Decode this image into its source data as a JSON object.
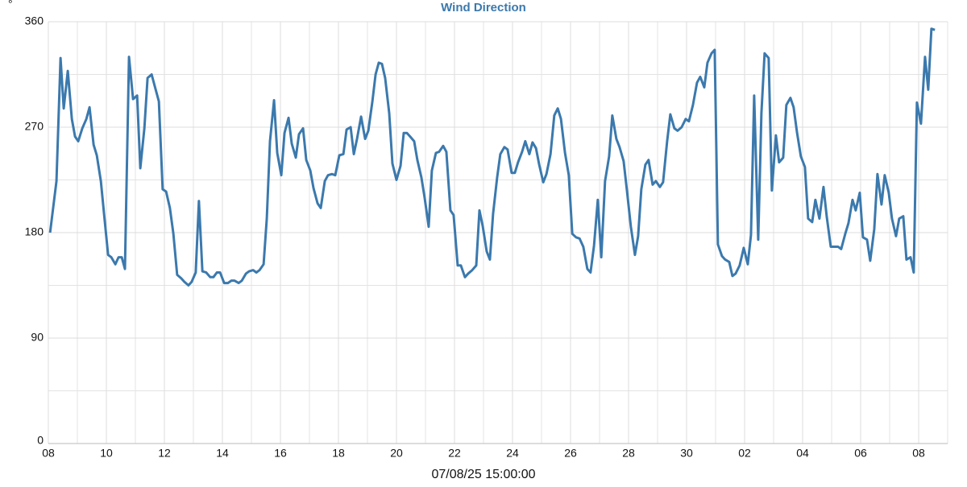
{
  "chart_data": {
    "type": "line",
    "title": "Wind Direction",
    "y_unit": "°",
    "x_label": "07/08/25 15:00:00",
    "xlim": [
      0,
      31
    ],
    "ylim": [
      0,
      360
    ],
    "xticks": [
      {
        "value": 0,
        "label": "08"
      },
      {
        "value": 2,
        "label": "10"
      },
      {
        "value": 4,
        "label": "12"
      },
      {
        "value": 6,
        "label": "14"
      },
      {
        "value": 8,
        "label": "16"
      },
      {
        "value": 10,
        "label": "18"
      },
      {
        "value": 12,
        "label": "20"
      },
      {
        "value": 14,
        "label": "22"
      },
      {
        "value": 16,
        "label": "24"
      },
      {
        "value": 18,
        "label": "26"
      },
      {
        "value": 20,
        "label": "28"
      },
      {
        "value": 22,
        "label": "30"
      },
      {
        "value": 24,
        "label": "02"
      },
      {
        "value": 26,
        "label": "04"
      },
      {
        "value": 28,
        "label": "06"
      },
      {
        "value": 30,
        "label": "08"
      }
    ],
    "yticks": [
      0,
      90,
      180,
      270,
      360
    ],
    "x_grid_step": 1,
    "y_grid_step": 45,
    "grid": true,
    "series": [
      {
        "name": "Wind Direction",
        "color": "#3b79ad",
        "x": [
          0.06,
          0.28,
          0.42,
          0.53,
          0.67,
          0.81,
          0.92,
          1.03,
          1.17,
          1.31,
          1.42,
          1.56,
          1.67,
          1.81,
          1.92,
          2.06,
          2.17,
          2.31,
          2.42,
          2.53,
          2.64,
          2.78,
          2.92,
          3.06,
          3.17,
          3.31,
          3.42,
          3.56,
          3.69,
          3.81,
          3.94,
          4.06,
          4.19,
          4.31,
          4.44,
          4.58,
          4.69,
          4.83,
          4.94,
          5.08,
          5.19,
          5.31,
          5.44,
          5.58,
          5.69,
          5.81,
          5.92,
          6.06,
          6.19,
          6.31,
          6.42,
          6.56,
          6.67,
          6.81,
          6.92,
          7.06,
          7.17,
          7.28,
          7.42,
          7.53,
          7.64,
          7.78,
          7.89,
          8.03,
          8.14,
          8.28,
          8.39,
          8.53,
          8.64,
          8.78,
          8.89,
          9.03,
          9.14,
          9.28,
          9.39,
          9.53,
          9.64,
          9.78,
          9.89,
          10.03,
          10.17,
          10.28,
          10.42,
          10.53,
          10.64,
          10.78,
          10.92,
          11.03,
          11.17,
          11.28,
          11.39,
          11.5,
          11.61,
          11.75,
          11.86,
          12,
          12.14,
          12.25,
          12.36,
          12.47,
          12.61,
          12.72,
          12.86,
          12.97,
          13.11,
          13.22,
          13.36,
          13.47,
          13.61,
          13.72,
          13.86,
          13.97,
          14.11,
          14.22,
          14.36,
          14.47,
          14.61,
          14.75,
          14.86,
          14.97,
          15.11,
          15.22,
          15.33,
          15.47,
          15.58,
          15.72,
          15.83,
          15.97,
          16.08,
          16.19,
          16.33,
          16.44,
          16.58,
          16.69,
          16.81,
          16.92,
          17.06,
          17.17,
          17.31,
          17.44,
          17.56,
          17.67,
          17.81,
          17.94,
          18.06,
          18.19,
          18.31,
          18.44,
          18.58,
          18.69,
          18.81,
          18.94,
          19.06,
          19.19,
          19.33,
          19.44,
          19.58,
          19.69,
          19.83,
          19.94,
          20.08,
          20.22,
          20.33,
          20.44,
          20.58,
          20.69,
          20.83,
          20.94,
          21.08,
          21.19,
          21.33,
          21.44,
          21.58,
          21.69,
          21.83,
          21.97,
          22.08,
          22.22,
          22.36,
          22.47,
          22.61,
          22.72,
          22.86,
          22.97,
          23.08,
          23.22,
          23.33,
          23.47,
          23.58,
          23.69,
          23.83,
          23.97,
          24.11,
          24.22,
          24.33,
          24.47,
          24.58,
          24.69,
          24.83,
          24.94,
          25.08,
          25.19,
          25.33,
          25.44,
          25.58,
          25.69,
          25.81,
          25.94,
          26.08,
          26.19,
          26.33,
          26.44,
          26.58,
          26.72,
          26.83,
          26.97,
          27.08,
          27.22,
          27.33,
          27.47,
          27.58,
          27.72,
          27.83,
          27.97,
          28.08,
          28.22,
          28.33,
          28.47,
          28.58,
          28.72,
          28.83,
          28.97,
          29.08,
          29.22,
          29.33,
          29.47,
          29.58,
          29.72,
          29.83,
          29.94,
          30.08,
          30.22,
          30.33,
          30.44,
          30.56
        ],
        "values": [
          180,
          224,
          329,
          286,
          318,
          277,
          262,
          258,
          269,
          277,
          287,
          255,
          246,
          224,
          196,
          161,
          159,
          153,
          159,
          159,
          149,
          330,
          294,
          297,
          235,
          269,
          312,
          315,
          303,
          292,
          217,
          215,
          201,
          179,
          144,
          141,
          138,
          135,
          138,
          146,
          207,
          147,
          146,
          142,
          142,
          146,
          146,
          137,
          137,
          139,
          139,
          137,
          139,
          145,
          147,
          148,
          146,
          148,
          153,
          192,
          258,
          293,
          248,
          229,
          265,
          278,
          256,
          244,
          264,
          269,
          242,
          233,
          218,
          205,
          201,
          224,
          229,
          230,
          229,
          246,
          247,
          268,
          270,
          247,
          260,
          279,
          260,
          267,
          292,
          315,
          325,
          324,
          312,
          282,
          239,
          225,
          237,
          265,
          265,
          262,
          258,
          242,
          227,
          210,
          185,
          233,
          248,
          249,
          254,
          249,
          199,
          195,
          152,
          152,
          142,
          145,
          148,
          152,
          199,
          186,
          164,
          157,
          196,
          227,
          247,
          253,
          251,
          231,
          231,
          240,
          249,
          258,
          247,
          257,
          252,
          238,
          223,
          230,
          247,
          280,
          286,
          277,
          248,
          229,
          179,
          176,
          175,
          168,
          149,
          146,
          169,
          208,
          159,
          224,
          245,
          280,
          260,
          253,
          241,
          217,
          185,
          161,
          177,
          217,
          238,
          242,
          221,
          224,
          219,
          223,
          258,
          281,
          269,
          267,
          270,
          277,
          275,
          289,
          308,
          313,
          304,
          325,
          333,
          336,
          170,
          160,
          157,
          155,
          143,
          145,
          152,
          167,
          153,
          178,
          297,
          174,
          282,
          333,
          329,
          216,
          263,
          240,
          244,
          289,
          295,
          287,
          265,
          245,
          236,
          192,
          189,
          208,
          192,
          219,
          194,
          168,
          168,
          168,
          166,
          179,
          188,
          208,
          199,
          214,
          176,
          174,
          156,
          183,
          230,
          204,
          229,
          214,
          192,
          177,
          192,
          194,
          157,
          159,
          146,
          291,
          273,
          330,
          302,
          354,
          353
        ]
      }
    ]
  }
}
